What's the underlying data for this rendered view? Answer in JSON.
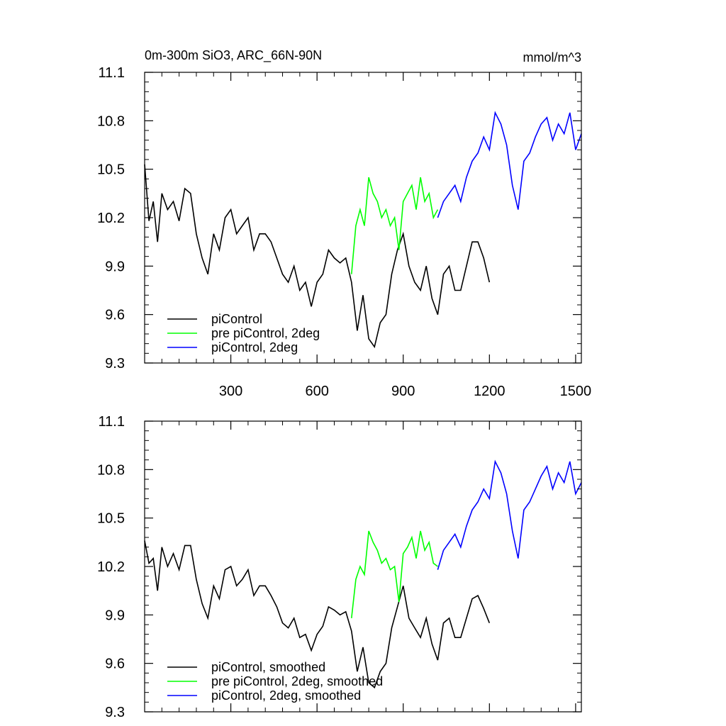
{
  "chart_data": [
    {
      "type": "line",
      "title": "0m-300m SiO3, ARC_66N-90N",
      "units": "mmol/m^3",
      "xlim": [
        0,
        1520
      ],
      "ylim": [
        9.3,
        11.1
      ],
      "x_ticks": [
        300,
        600,
        900,
        1200,
        1500
      ],
      "y_ticks": [
        "9.3",
        "9.6",
        "9.9",
        "10.2",
        "10.5",
        "10.8",
        "11.1"
      ],
      "grid": false,
      "legend_position": "bottom-left",
      "series": [
        {
          "name": "piControl",
          "color": "#000000",
          "x": [
            0,
            15,
            30,
            45,
            60,
            80,
            100,
            120,
            140,
            160,
            180,
            200,
            220,
            240,
            260,
            280,
            300,
            320,
            340,
            360,
            380,
            400,
            420,
            440,
            460,
            480,
            500,
            520,
            540,
            560,
            580,
            600,
            620,
            640,
            660,
            680,
            700,
            720,
            740,
            760,
            780,
            800,
            820,
            840,
            860,
            880,
            900,
            920,
            940,
            960,
            980,
            1000,
            1020,
            1040,
            1060,
            1080,
            1100,
            1120,
            1140,
            1160,
            1180,
            1200
          ],
          "values": [
            10.53,
            10.18,
            10.3,
            10.05,
            10.35,
            10.25,
            10.3,
            10.18,
            10.38,
            10.35,
            10.1,
            9.95,
            9.85,
            10.1,
            10.0,
            10.2,
            10.25,
            10.1,
            10.15,
            10.2,
            10.0,
            10.1,
            10.1,
            10.05,
            9.95,
            9.85,
            9.8,
            9.9,
            9.75,
            9.8,
            9.65,
            9.8,
            9.85,
            10.0,
            9.95,
            9.92,
            9.95,
            9.8,
            9.5,
            9.72,
            9.45,
            9.4,
            9.55,
            9.6,
            9.85,
            10.0,
            10.1,
            9.9,
            9.8,
            9.75,
            9.9,
            9.7,
            9.6,
            9.85,
            9.9,
            9.75,
            9.75,
            9.9,
            10.05,
            10.05,
            9.95,
            9.8
          ]
        },
        {
          "name": "pre piControl, 2deg",
          "color": "#00ff00",
          "x": [
            720,
            735,
            750,
            765,
            780,
            795,
            810,
            825,
            840,
            855,
            870,
            885,
            900,
            915,
            930,
            945,
            960,
            975,
            990,
            1005,
            1020
          ],
          "values": [
            9.85,
            10.15,
            10.25,
            10.15,
            10.45,
            10.35,
            10.3,
            10.2,
            10.25,
            10.15,
            10.2,
            10.0,
            10.3,
            10.35,
            10.4,
            10.25,
            10.45,
            10.3,
            10.35,
            10.2,
            10.25
          ]
        },
        {
          "name": "piControl, 2deg",
          "color": "#0000ff",
          "x": [
            1020,
            1040,
            1060,
            1080,
            1100,
            1120,
            1140,
            1160,
            1180,
            1200,
            1220,
            1240,
            1260,
            1280,
            1300,
            1320,
            1340,
            1360,
            1380,
            1400,
            1420,
            1440,
            1460,
            1480,
            1500,
            1520
          ],
          "values": [
            10.2,
            10.3,
            10.35,
            10.4,
            10.3,
            10.45,
            10.55,
            10.6,
            10.7,
            10.62,
            10.85,
            10.78,
            10.65,
            10.4,
            10.25,
            10.55,
            10.6,
            10.7,
            10.78,
            10.82,
            10.68,
            10.78,
            10.72,
            10.85,
            10.62,
            10.72
          ]
        }
      ]
    },
    {
      "type": "line",
      "xlim": [
        0,
        1520
      ],
      "ylim": [
        9.3,
        11.1
      ],
      "y_ticks": [
        "9.3",
        "9.6",
        "9.9",
        "10.2",
        "10.5",
        "10.8",
        "11.1"
      ],
      "grid": false,
      "legend_position": "bottom-left",
      "series": [
        {
          "name": "piControl, smoothed",
          "color": "#000000",
          "x": [
            0,
            15,
            30,
            45,
            60,
            80,
            100,
            120,
            140,
            160,
            180,
            200,
            220,
            240,
            260,
            280,
            300,
            320,
            340,
            360,
            380,
            400,
            420,
            440,
            460,
            480,
            500,
            520,
            540,
            560,
            580,
            600,
            620,
            640,
            660,
            680,
            700,
            720,
            740,
            760,
            780,
            800,
            820,
            840,
            860,
            880,
            900,
            920,
            940,
            960,
            980,
            1000,
            1020,
            1040,
            1060,
            1080,
            1100,
            1120,
            1140,
            1160,
            1180,
            1200
          ],
          "values": [
            10.36,
            10.22,
            10.25,
            10.05,
            10.32,
            10.2,
            10.28,
            10.18,
            10.33,
            10.33,
            10.12,
            9.97,
            9.88,
            10.08,
            10.0,
            10.18,
            10.2,
            10.08,
            10.12,
            10.18,
            10.02,
            10.08,
            10.08,
            10.02,
            9.95,
            9.85,
            9.82,
            9.88,
            9.76,
            9.78,
            9.68,
            9.78,
            9.83,
            9.95,
            9.93,
            9.9,
            9.92,
            9.8,
            9.55,
            9.7,
            9.48,
            9.45,
            9.55,
            9.6,
            9.82,
            9.95,
            10.08,
            9.88,
            9.82,
            9.76,
            9.88,
            9.72,
            9.62,
            9.85,
            9.88,
            9.76,
            9.76,
            9.88,
            10.0,
            10.02,
            9.94,
            9.85
          ]
        },
        {
          "name": "pre piControl, 2deg, smoothed",
          "color": "#00ff00",
          "x": [
            720,
            735,
            750,
            765,
            780,
            795,
            810,
            825,
            840,
            855,
            870,
            885,
            900,
            915,
            930,
            945,
            960,
            975,
            990,
            1005,
            1020
          ],
          "values": [
            9.88,
            10.12,
            10.2,
            10.15,
            10.42,
            10.35,
            10.3,
            10.22,
            10.25,
            10.18,
            10.2,
            9.98,
            10.28,
            10.32,
            10.38,
            10.25,
            10.42,
            10.3,
            10.35,
            10.22,
            10.2
          ]
        },
        {
          "name": "piControl, 2deg, smoothed",
          "color": "#0000ff",
          "x": [
            1020,
            1040,
            1060,
            1080,
            1100,
            1120,
            1140,
            1160,
            1180,
            1200,
            1220,
            1240,
            1260,
            1280,
            1300,
            1320,
            1340,
            1360,
            1380,
            1400,
            1420,
            1440,
            1460,
            1480,
            1500,
            1520
          ],
          "values": [
            10.18,
            10.3,
            10.35,
            10.4,
            10.32,
            10.45,
            10.55,
            10.6,
            10.68,
            10.62,
            10.85,
            10.78,
            10.65,
            10.42,
            10.25,
            10.55,
            10.6,
            10.68,
            10.76,
            10.82,
            10.68,
            10.78,
            10.72,
            10.85,
            10.65,
            10.72
          ]
        }
      ]
    }
  ]
}
